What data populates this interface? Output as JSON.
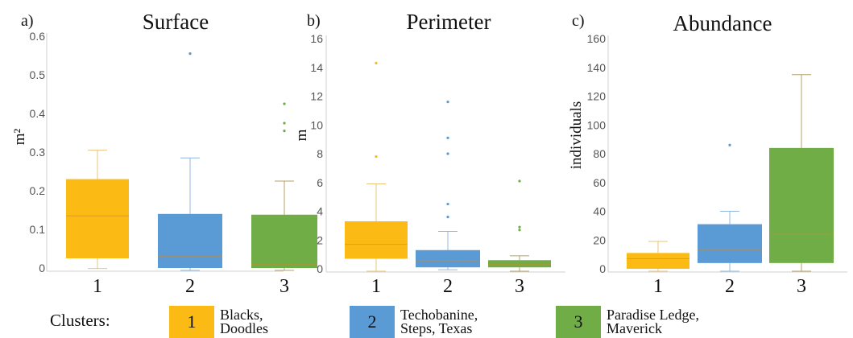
{
  "chart_data": [
    {
      "type": "box",
      "panel_label": "a)",
      "title": "Surface",
      "ylabel": "m²",
      "ylim": [
        0,
        0.6
      ],
      "yticks": [
        0,
        0.1,
        0.2,
        0.3,
        0.4,
        0.5,
        0.6
      ],
      "ytick_labels": [
        "0",
        "0.1",
        "0.2",
        "0.3",
        "0.4",
        "0.5",
        "0.6"
      ],
      "categories": [
        "1",
        "2",
        "3"
      ],
      "boxes": [
        {
          "cluster": "1",
          "min": 0.005,
          "q1": 0.025,
          "median": 0.135,
          "q3": 0.23,
          "max": 0.305,
          "outliers": []
        },
        {
          "cluster": "2",
          "min": 0.0,
          "q1": 0.0,
          "median": 0.03,
          "q3": 0.14,
          "max": 0.285,
          "outliers": [
            0.555
          ]
        },
        {
          "cluster": "3",
          "min": 0.0,
          "q1": 0.0,
          "median": 0.01,
          "q3": 0.138,
          "max": 0.225,
          "outliers": [
            0.355,
            0.375,
            0.425
          ]
        }
      ]
    },
    {
      "type": "box",
      "panel_label": "b)",
      "title": "Perimeter",
      "ylabel": "m",
      "ylim": [
        0,
        16
      ],
      "yticks": [
        0,
        2,
        4,
        6,
        8,
        10,
        12,
        14,
        16
      ],
      "ytick_labels": [
        "0",
        "2",
        "4",
        "6",
        "8",
        "10",
        "12",
        "14",
        "16"
      ],
      "categories": [
        "1",
        "2",
        "3"
      ],
      "boxes": [
        {
          "cluster": "1",
          "min": 0.0,
          "q1": 0.7,
          "median": 1.7,
          "q3": 3.3,
          "max": 5.9,
          "outliers": [
            7.8,
            14.3
          ]
        },
        {
          "cluster": "2",
          "min": 0.1,
          "q1": 0.1,
          "median": 0.55,
          "q3": 1.3,
          "max": 2.6,
          "outliers": [
            3.6,
            4.5,
            8.0,
            9.1,
            11.6
          ]
        },
        {
          "cluster": "3",
          "min": 0.0,
          "q1": 0.1,
          "median": 0.3,
          "q3": 0.6,
          "max": 0.9,
          "outliers": [
            2.7,
            2.9,
            6.1
          ]
        }
      ]
    },
    {
      "type": "box",
      "panel_label": "c)",
      "title": "Abundance",
      "ylabel": "individuals",
      "ylim": [
        0,
        160
      ],
      "yticks": [
        0,
        20,
        40,
        60,
        80,
        100,
        120,
        140,
        160
      ],
      "ytick_labels": [
        "0",
        "20",
        "40",
        "60",
        "80",
        "100",
        "120",
        "140",
        "160"
      ],
      "categories": [
        "1",
        "2",
        "3"
      ],
      "boxes": [
        {
          "cluster": "1",
          "min": 0,
          "q1": 0,
          "median": 7,
          "q3": 11,
          "max": 19,
          "outliers": []
        },
        {
          "cluster": "2",
          "min": 0,
          "q1": 4,
          "median": 13,
          "q3": 31,
          "max": 40,
          "outliers": [
            86
          ]
        },
        {
          "cluster": "3",
          "min": 0,
          "q1": 4,
          "median": 24,
          "q3": 84,
          "max": 135,
          "outliers": []
        }
      ]
    }
  ],
  "colors": {
    "cluster_1": "#FBBA14",
    "cluster_2": "#5B9BD5",
    "cluster_3": "#70AD47",
    "whisker_1": "#E8C47A",
    "whisker_2": "#8FB8E0",
    "whisker_3": "#B5A06A",
    "median_line": "#D08A2A",
    "axis": "#D9D9D9",
    "tick_text": "#555555"
  },
  "legend": {
    "title": "Clusters:",
    "items": [
      {
        "number": "1",
        "line1": "Blacks,",
        "line2": "Doodles"
      },
      {
        "number": "2",
        "line1": "Techobanine,",
        "line2": "Steps, Texas"
      },
      {
        "number": "3",
        "line1": "Paradise Ledge,",
        "line2": "Maverick"
      }
    ]
  }
}
